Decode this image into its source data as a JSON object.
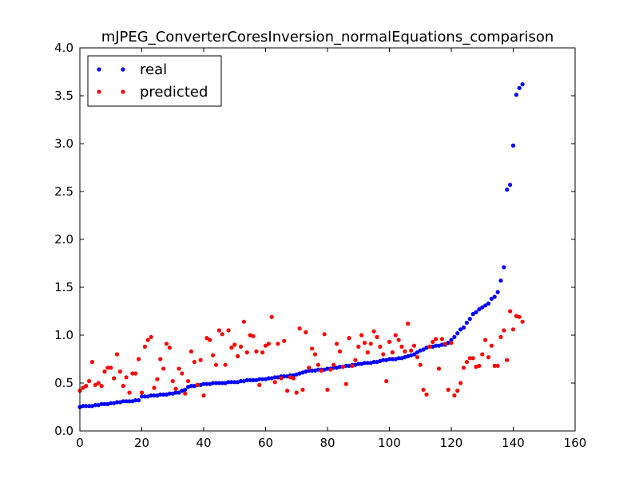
{
  "chart_data": {
    "type": "scatter",
    "title": "mJPEG_ConverterCoresInversion_normalEquations_comparison",
    "xlabel": "",
    "ylabel": "",
    "xlim": [
      0,
      160
    ],
    "ylim": [
      0.0,
      4.0
    ],
    "xticks": [
      0,
      20,
      40,
      60,
      80,
      100,
      120,
      140,
      160
    ],
    "xtick_labels": [
      "0",
      "20",
      "40",
      "60",
      "80",
      "100",
      "120",
      "140",
      "160"
    ],
    "yticks": [
      0.0,
      0.5,
      1.0,
      1.5,
      2.0,
      2.5,
      3.0,
      3.5,
      4.0
    ],
    "ytick_labels": [
      "0.0",
      "0.5",
      "1.0",
      "1.5",
      "2.0",
      "2.5",
      "3.0",
      "3.5",
      "4.0"
    ],
    "grid": false,
    "legend_position": "top-left",
    "series": [
      {
        "name": "real",
        "color": "#0000ff",
        "x": [
          0,
          1,
          2,
          3,
          4,
          5,
          6,
          7,
          8,
          9,
          10,
          11,
          12,
          13,
          14,
          15,
          16,
          17,
          18,
          19,
          20,
          21,
          22,
          23,
          24,
          25,
          26,
          27,
          28,
          29,
          30,
          31,
          32,
          33,
          34,
          35,
          36,
          37,
          38,
          39,
          40,
          41,
          42,
          43,
          44,
          45,
          46,
          47,
          48,
          49,
          50,
          51,
          52,
          53,
          54,
          55,
          56,
          57,
          58,
          59,
          60,
          61,
          62,
          63,
          64,
          65,
          66,
          67,
          68,
          69,
          70,
          71,
          72,
          73,
          74,
          75,
          76,
          77,
          78,
          79,
          80,
          81,
          82,
          83,
          84,
          85,
          86,
          87,
          88,
          89,
          90,
          91,
          92,
          93,
          94,
          95,
          96,
          97,
          98,
          99,
          100,
          101,
          102,
          103,
          104,
          105,
          106,
          107,
          108,
          109,
          110,
          111,
          112,
          113,
          114,
          115,
          116,
          117,
          118,
          119,
          120,
          121,
          122,
          123,
          124,
          125,
          126,
          127,
          128,
          129,
          130,
          131,
          132,
          133,
          134,
          135,
          136,
          137,
          138,
          139,
          140,
          141,
          142,
          143
        ],
        "y": [
          0.25,
          0.26,
          0.26,
          0.26,
          0.26,
          0.27,
          0.27,
          0.28,
          0.28,
          0.28,
          0.29,
          0.29,
          0.3,
          0.3,
          0.31,
          0.31,
          0.31,
          0.31,
          0.32,
          0.32,
          0.36,
          0.36,
          0.36,
          0.37,
          0.37,
          0.37,
          0.38,
          0.38,
          0.38,
          0.39,
          0.39,
          0.4,
          0.4,
          0.42,
          0.43,
          0.46,
          0.47,
          0.47,
          0.48,
          0.48,
          0.49,
          0.49,
          0.49,
          0.5,
          0.5,
          0.5,
          0.5,
          0.5,
          0.51,
          0.51,
          0.51,
          0.51,
          0.52,
          0.52,
          0.53,
          0.53,
          0.53,
          0.53,
          0.54,
          0.54,
          0.54,
          0.55,
          0.55,
          0.56,
          0.56,
          0.57,
          0.57,
          0.57,
          0.58,
          0.58,
          0.59,
          0.6,
          0.61,
          0.62,
          0.63,
          0.63,
          0.63,
          0.64,
          0.64,
          0.64,
          0.65,
          0.65,
          0.66,
          0.66,
          0.67,
          0.67,
          0.68,
          0.68,
          0.69,
          0.69,
          0.7,
          0.7,
          0.71,
          0.71,
          0.71,
          0.72,
          0.72,
          0.73,
          0.74,
          0.74,
          0.75,
          0.75,
          0.75,
          0.76,
          0.76,
          0.77,
          0.78,
          0.79,
          0.8,
          0.82,
          0.84,
          0.85,
          0.87,
          0.88,
          0.88,
          0.89,
          0.89,
          0.9,
          0.9,
          0.92,
          0.95,
          0.98,
          1.02,
          1.06,
          1.08,
          1.13,
          1.17,
          1.22,
          1.24,
          1.27,
          1.29,
          1.31,
          1.33,
          1.38,
          1.4,
          1.45,
          1.57,
          1.71,
          2.52,
          2.57,
          2.98,
          3.51,
          3.58,
          3.62
        ]
      },
      {
        "name": "predicted",
        "color": "#ff0000",
        "x": [
          0,
          1,
          2,
          3,
          4,
          5,
          6,
          7,
          8,
          9,
          10,
          11,
          12,
          13,
          14,
          15,
          16,
          17,
          18,
          19,
          20,
          21,
          22,
          23,
          24,
          25,
          26,
          27,
          28,
          29,
          30,
          31,
          32,
          33,
          34,
          35,
          36,
          37,
          38,
          39,
          40,
          41,
          42,
          43,
          44,
          45,
          46,
          47,
          48,
          49,
          50,
          51,
          52,
          53,
          54,
          55,
          56,
          57,
          58,
          59,
          60,
          61,
          62,
          63,
          64,
          65,
          66,
          67,
          68,
          69,
          70,
          71,
          72,
          73,
          74,
          75,
          76,
          77,
          78,
          79,
          80,
          81,
          82,
          83,
          84,
          85,
          86,
          87,
          88,
          89,
          90,
          91,
          92,
          93,
          94,
          95,
          96,
          97,
          98,
          99,
          100,
          101,
          102,
          103,
          104,
          105,
          106,
          107,
          108,
          109,
          110,
          111,
          112,
          113,
          114,
          115,
          116,
          117,
          118,
          119,
          120,
          121,
          122,
          123,
          124,
          125,
          126,
          127,
          128,
          129,
          130,
          131,
          132,
          133,
          134,
          135,
          136,
          137,
          138,
          139,
          140,
          141,
          142,
          143
        ],
        "y": [
          0.42,
          0.45,
          0.47,
          0.52,
          0.72,
          0.48,
          0.5,
          0.47,
          0.62,
          0.66,
          0.66,
          0.55,
          0.8,
          0.62,
          0.47,
          0.56,
          0.4,
          0.6,
          0.6,
          0.75,
          0.4,
          0.88,
          0.95,
          0.98,
          0.45,
          0.54,
          0.75,
          0.65,
          0.91,
          0.87,
          0.52,
          0.44,
          0.65,
          0.6,
          0.39,
          0.52,
          0.83,
          0.72,
          0.48,
          0.74,
          0.37,
          0.97,
          0.95,
          0.79,
          0.69,
          1.05,
          1.01,
          0.69,
          1.05,
          0.87,
          0.9,
          0.78,
          0.88,
          1.14,
          0.82,
          1.0,
          0.99,
          0.83,
          0.48,
          0.82,
          0.89,
          0.91,
          1.19,
          0.51,
          0.91,
          0.55,
          0.94,
          0.42,
          0.56,
          0.55,
          0.4,
          1.07,
          0.43,
          1.03,
          0.66,
          0.86,
          0.8,
          0.69,
          0.63,
          1.01,
          0.43,
          0.64,
          0.69,
          0.91,
          0.83,
          0.67,
          0.49,
          0.97,
          0.68,
          0.74,
          0.88,
          1.0,
          0.92,
          0.82,
          0.91,
          1.04,
          0.98,
          0.88,
          0.8,
          0.52,
          0.93,
          0.82,
          1.0,
          0.95,
          0.88,
          0.83,
          1.12,
          0.84,
          0.89,
          0.77,
          0.69,
          0.43,
          0.38,
          0.88,
          0.93,
          0.96,
          0.65,
          0.96,
          0.91,
          0.43,
          0.92,
          0.37,
          0.42,
          0.5,
          0.66,
          0.72,
          0.76,
          0.76,
          0.67,
          0.68,
          0.8,
          0.95,
          0.77,
          0.89,
          0.68,
          0.68,
          0.98,
          1.05,
          0.74,
          1.25,
          1.06,
          1.2,
          1.19,
          1.14
        ]
      }
    ]
  }
}
